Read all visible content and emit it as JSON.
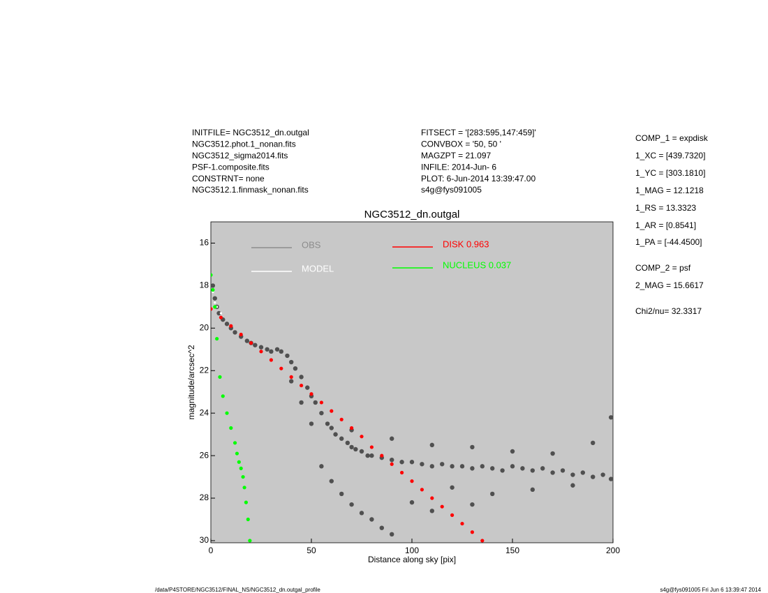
{
  "header_left": [
    "INITFILE= NGC3512_dn.outgal",
    "NGC3512.phot.1_nonan.fits",
    "NGC3512_sigma2014.fits",
    "PSF-1.composite.fits",
    "CONSTRNT= none",
    "NGC3512.1.finmask_nonan.fits"
  ],
  "header_center": [
    "FITSECT = '[283:595,147:459]'",
    "CONVBOX = '50, 50  '",
    "MAGZPT  =             21.097",
    "INFILE: 2014-Jun- 6",
    "PLOT:  6-Jun-2014 13:39:47.00",
    "s4g@fys091005"
  ],
  "params": [
    "COMP_1  = expdisk",
    "1_XC    = [439.7320]",
    "1_YC    = [303.1810]",
    "1_MAG   = 12.1218",
    "1_RS    = 13.3323",
    "1_AR    = [0.8541]",
    "1_PA    = [-44.4500]",
    "COMP_2  = psf",
    "2_MAG   = 15.6617",
    "Chi2/nu=      32.3317"
  ],
  "footer_left": "/data/P4STORE/NGC3512/FINAL_NS/NGC3512_dn.outgal_profile",
  "footer_right": "s4g@fys091005  Fri Jun  6 13:39:47 2014",
  "chart_data": {
    "type": "scatter",
    "title": "NGC3512_dn.outgal",
    "xlabel": "Distance along sky [pix]",
    "ylabel": "magnitude/arcsec^2",
    "xlim": [
      0,
      200
    ],
    "ylim": [
      30.1,
      15
    ],
    "xticks": [
      0,
      50,
      100,
      150,
      200
    ],
    "yticks": [
      16,
      18,
      20,
      22,
      24,
      26,
      28,
      30
    ],
    "background": "#c8c8c8",
    "series": [
      {
        "name": "OBS",
        "color": "#505050",
        "legend_color": "#8c8c8c",
        "x": [
          1,
          2,
          3,
          4,
          6,
          8,
          10,
          12,
          15,
          18,
          20,
          22,
          25,
          28,
          30,
          33,
          35,
          38,
          40,
          42,
          45,
          48,
          50,
          52,
          55,
          58,
          60,
          62,
          65,
          68,
          70,
          72,
          75,
          78,
          80,
          85,
          90,
          95,
          100,
          105,
          110,
          115,
          120,
          125,
          130,
          135,
          140,
          145,
          150,
          155,
          160,
          165,
          170,
          175,
          180,
          185,
          190,
          195,
          199,
          55,
          60,
          65,
          70,
          75,
          80,
          85,
          90,
          50,
          45,
          40,
          70,
          90,
          110,
          130,
          150,
          170,
          190,
          199,
          120,
          140,
          160,
          180,
          100,
          110,
          130
        ],
        "values": [
          18.0,
          18.6,
          19.0,
          19.3,
          19.6,
          19.8,
          20.0,
          20.2,
          20.4,
          20.6,
          20.7,
          20.8,
          20.9,
          21.0,
          21.1,
          21.0,
          21.1,
          21.3,
          21.6,
          21.9,
          22.3,
          22.8,
          23.2,
          23.5,
          24.0,
          24.5,
          24.7,
          25.0,
          25.2,
          25.4,
          25.6,
          25.7,
          25.8,
          26.0,
          26.0,
          26.1,
          26.2,
          26.3,
          26.3,
          26.4,
          26.5,
          26.4,
          26.5,
          26.5,
          26.6,
          26.5,
          26.6,
          26.7,
          26.5,
          26.6,
          26.7,
          26.6,
          26.8,
          26.7,
          26.9,
          26.8,
          27.0,
          26.9,
          27.1,
          26.5,
          27.2,
          27.8,
          28.3,
          28.7,
          29.0,
          29.4,
          29.7,
          24.5,
          23.5,
          22.5,
          24.8,
          25.2,
          25.5,
          25.6,
          25.8,
          25.9,
          25.4,
          24.2,
          27.5,
          27.8,
          27.6,
          27.4,
          28.2,
          28.6,
          28.3
        ]
      },
      {
        "name": "MODEL",
        "color": "#ffffff",
        "x": [
          0,
          1,
          2,
          3,
          5,
          10,
          20,
          30,
          40,
          50,
          60,
          70,
          80,
          90,
          100,
          110,
          120,
          130,
          135
        ],
        "values": [
          17.5,
          18.3,
          18.8,
          19.0,
          19.3,
          19.9,
          20.7,
          21.5,
          22.3,
          23.1,
          23.9,
          24.7,
          25.6,
          26.4,
          27.2,
          28.0,
          28.8,
          29.6,
          30.0
        ]
      },
      {
        "name": "DISK  0.963",
        "color": "#ff0000",
        "x": [
          0,
          5,
          10,
          15,
          20,
          25,
          30,
          35,
          40,
          45,
          50,
          55,
          60,
          65,
          70,
          75,
          80,
          85,
          90,
          95,
          100,
          105,
          110,
          115,
          120,
          125,
          130,
          135
        ],
        "values": [
          19.1,
          19.5,
          19.9,
          20.3,
          20.7,
          21.1,
          21.5,
          21.9,
          22.3,
          22.7,
          23.1,
          23.5,
          23.9,
          24.3,
          24.7,
          25.1,
          25.6,
          26.0,
          26.4,
          26.8,
          27.2,
          27.6,
          28.0,
          28.4,
          28.8,
          29.2,
          29.6,
          30.0
        ]
      },
      {
        "name": "NUCLEUS  0.037",
        "color": "#00ff00",
        "x": [
          0,
          1,
          2,
          3,
          4.5,
          6,
          8,
          10,
          12,
          13,
          14,
          15,
          16,
          16.7,
          17.5,
          18.5,
          19.4
        ],
        "values": [
          17.5,
          18.2,
          19.0,
          20.5,
          22.3,
          23.2,
          24.0,
          24.7,
          25.4,
          25.9,
          26.3,
          26.6,
          27.0,
          27.5,
          28.2,
          29.0,
          30.0
        ]
      }
    ]
  }
}
